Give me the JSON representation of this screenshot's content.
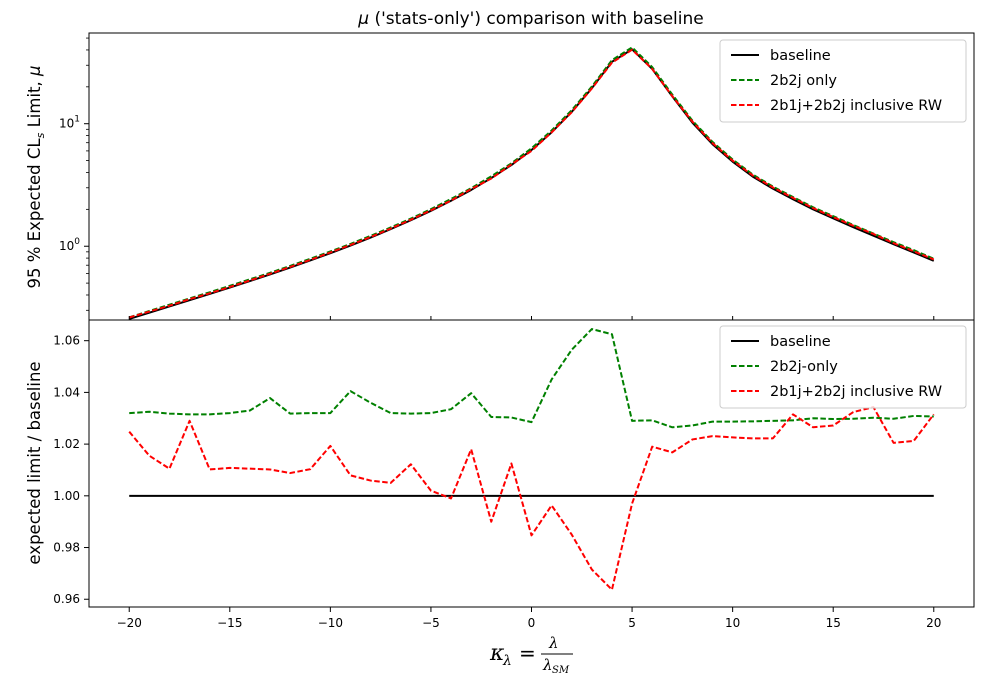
{
  "chart_data": [
    {
      "type": "line",
      "title": "μ ('stats-only') comparison with baseline",
      "title_prefix": "μ",
      "title_rest": " ('stats-only') comparison with baseline",
      "ylabel": "95 % Expected CLs Limit, μ",
      "ylabel_parts": {
        "a": "95 % Expected CL",
        "sub": "s",
        "b": " Limit, ",
        "mu": "μ"
      },
      "yscale": "log",
      "ylim": [
        0.25,
        55
      ],
      "xlim": [
        -22,
        22
      ],
      "yticks": [
        1,
        10
      ],
      "ytick_labels": [
        {
          "base": "10",
          "exp": "0"
        },
        {
          "base": "10",
          "exp": "1"
        }
      ],
      "legend": {
        "loc": "upper right",
        "entries": [
          "baseline",
          "2b2j only",
          "2b1j+2b2j inclusive RW"
        ]
      },
      "x": [
        -20,
        -19,
        -18,
        -17,
        -16,
        -15,
        -14,
        -13,
        -12,
        -11,
        -10,
        -9,
        -8,
        -7,
        -6,
        -5,
        -4,
        -3,
        -2,
        -1,
        0,
        1,
        2,
        3,
        4,
        5,
        6,
        7,
        8,
        9,
        10,
        11,
        12,
        13,
        14,
        15,
        16,
        17,
        18,
        19,
        20
      ],
      "series": [
        {
          "name": "baseline",
          "color": "#000000",
          "dash": "solid",
          "values": [
            0.255,
            0.287,
            0.323,
            0.363,
            0.408,
            0.46,
            0.52,
            0.589,
            0.67,
            0.765,
            0.878,
            1.013,
            1.177,
            1.379,
            1.629,
            1.945,
            2.35,
            2.88,
            3.6,
            4.6,
            6.1,
            8.5,
            12.5,
            19.5,
            32.0,
            40.5,
            28.0,
            16.7,
            10.2,
            6.8,
            4.9,
            3.7,
            2.95,
            2.42,
            2.0,
            1.69,
            1.43,
            1.22,
            1.04,
            0.89,
            0.76
          ]
        },
        {
          "name": "2b2j only",
          "color": "#008000",
          "dash": "dashed",
          "values": [
            0.263,
            0.296,
            0.333,
            0.375,
            0.421,
            0.475,
            0.537,
            0.607,
            0.691,
            0.79,
            0.906,
            1.045,
            1.215,
            1.423,
            1.681,
            2.007,
            2.43,
            2.98,
            3.72,
            4.75,
            6.3,
            8.8,
            12.9,
            20.1,
            33.0,
            42.0,
            29.0,
            17.3,
            10.6,
            7.1,
            5.1,
            3.85,
            3.07,
            2.52,
            2.08,
            1.76,
            1.49,
            1.27,
            1.08,
            0.93,
            0.79
          ]
        },
        {
          "name": "2b1j+2b2j inclusive RW",
          "color": "#ff0000",
          "dash": "dashed",
          "values": [
            0.262,
            0.293,
            0.327,
            0.37,
            0.413,
            0.465,
            0.526,
            0.596,
            0.678,
            0.774,
            0.89,
            1.025,
            1.19,
            1.395,
            1.648,
            1.965,
            2.36,
            2.93,
            3.57,
            4.65,
            6.0,
            8.5,
            12.4,
            19.4,
            31.5,
            40.2,
            28.0,
            16.8,
            10.4,
            6.95,
            5.0,
            3.78,
            3.02,
            2.48,
            2.05,
            1.73,
            1.47,
            1.26,
            1.06,
            0.91,
            0.78
          ]
        }
      ]
    },
    {
      "type": "line",
      "xlabel": "κλ = λ / λSM",
      "xlabel_parts": {
        "kappa": "κ",
        "lam": "λ",
        "eq": "=",
        "num": "λ",
        "den": "λ",
        "densub": "SM"
      },
      "ylabel": "expected limit / baseline",
      "xlim": [
        -22,
        22
      ],
      "ylim": [
        0.957,
        1.068
      ],
      "xticks": [
        -20,
        -15,
        -10,
        -5,
        0,
        5,
        10,
        15,
        20
      ],
      "xtick_labels": [
        "−20",
        "−15",
        "−10",
        "−5",
        "0",
        "5",
        "10",
        "15",
        "20"
      ],
      "yticks": [
        0.96,
        0.98,
        1.0,
        1.02,
        1.04,
        1.06
      ],
      "ytick_labels": [
        "0.96",
        "0.98",
        "1.00",
        "1.02",
        "1.04",
        "1.06"
      ],
      "legend": {
        "loc": "upper right",
        "entries": [
          "baseline",
          "2b2j-only",
          "2b1j+2b2j inclusive RW"
        ]
      },
      "x": [
        -20,
        -19,
        -18,
        -17,
        -16,
        -15,
        -14,
        -13,
        -12,
        -11,
        -10,
        -9,
        -8,
        -7,
        -6,
        -5,
        -4,
        -3,
        -2,
        -1,
        0,
        1,
        2,
        3,
        4,
        5,
        6,
        7,
        8,
        9,
        10,
        11,
        12,
        13,
        14,
        15,
        16,
        17,
        18,
        19,
        20
      ],
      "series": [
        {
          "name": "baseline",
          "color": "#000000",
          "dash": "solid",
          "values": [
            1,
            1,
            1,
            1,
            1,
            1,
            1,
            1,
            1,
            1,
            1,
            1,
            1,
            1,
            1,
            1,
            1,
            1,
            1,
            1,
            1,
            1,
            1,
            1,
            1,
            1,
            1,
            1,
            1,
            1,
            1,
            1,
            1,
            1,
            1,
            1,
            1,
            1,
            1,
            1,
            1
          ]
        },
        {
          "name": "2b2j-only",
          "color": "#008000",
          "dash": "dashed",
          "values": [
            1.032,
            1.0325,
            1.0318,
            1.0315,
            1.0315,
            1.032,
            1.033,
            1.0378,
            1.0318,
            1.032,
            1.032,
            1.0405,
            1.036,
            1.032,
            1.0318,
            1.032,
            1.0335,
            1.0397,
            1.0305,
            1.0303,
            1.0285,
            1.045,
            1.0565,
            1.0645,
            1.0625,
            1.029,
            1.0292,
            1.0265,
            1.0272,
            1.0287,
            1.0287,
            1.0288,
            1.029,
            1.0292,
            1.03,
            1.0297,
            1.0298,
            1.0302,
            1.0298,
            1.0309,
            1.0307
          ]
        },
        {
          "name": "2b1j+2b2j inclusive RW",
          "color": "#ff0000",
          "dash": "dashed",
          "values": [
            1.0248,
            1.0155,
            1.0105,
            1.029,
            1.0102,
            1.0108,
            1.0105,
            1.0102,
            1.0088,
            1.0103,
            1.0193,
            1.0079,
            1.0059,
            1.005,
            1.0122,
            1.002,
            0.999,
            1.018,
            0.99,
            1.0125,
            0.9847,
            0.9963,
            0.985,
            0.9715,
            0.9637,
            0.997,
            1.019,
            1.0168,
            1.0218,
            1.0231,
            1.0226,
            1.0222,
            1.0222,
            1.0315,
            1.0265,
            1.0272,
            1.0324,
            1.0343,
            1.0205,
            1.0212,
            1.0315
          ]
        }
      ]
    }
  ]
}
